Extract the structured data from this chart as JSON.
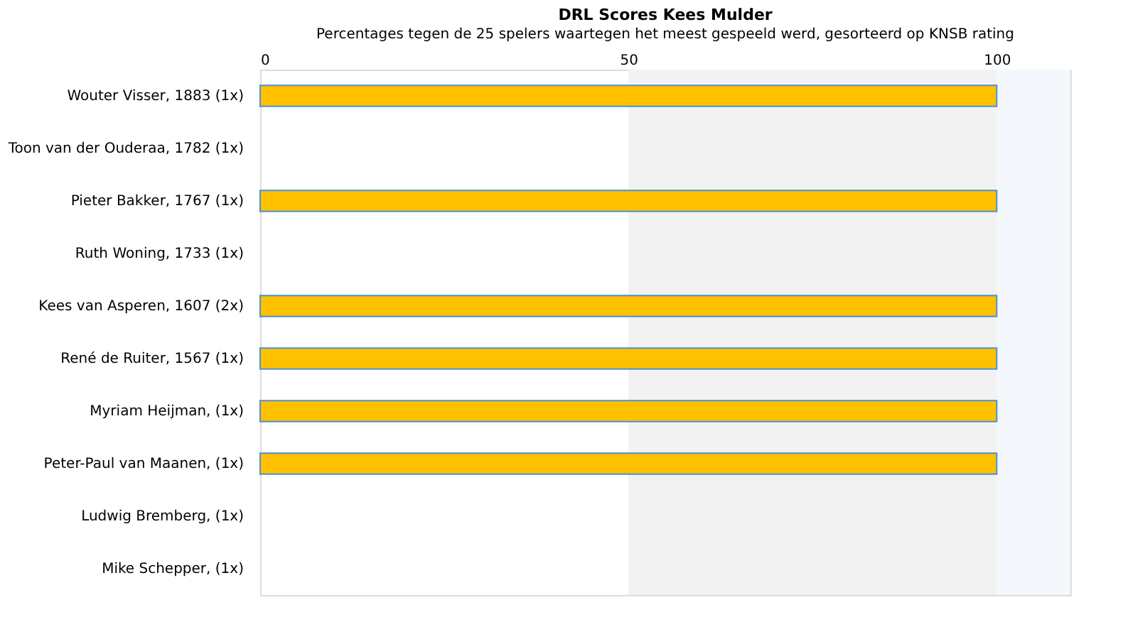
{
  "chart_data": {
    "type": "bar",
    "orientation": "horizontal",
    "title": "DRL Scores Kees Mulder",
    "subtitle": "Percentages tegen de 25 spelers waartegen het meest gespeeld werd, gesorteerd op KNSB rating",
    "categories": [
      "Wouter Visser, 1883 (1x)",
      "Toon van der Ouderaa, 1782 (1x)",
      "Pieter Bakker, 1767 (1x)",
      "Ruth Woning, 1733 (1x)",
      "Kees van Asperen, 1607 (2x)",
      "René de Ruiter, 1567 (1x)",
      "Myriam Heijman,  (1x)",
      "Peter-Paul van Maanen,  (1x)",
      "Ludwig Bremberg,  (1x)",
      "Mike Schepper,  (1x)"
    ],
    "values": [
      100,
      0,
      100,
      0,
      100,
      100,
      100,
      100,
      0,
      0
    ],
    "color": "#ffc000",
    "xlim": [
      0,
      110
    ],
    "xticks": [
      0,
      50,
      100
    ],
    "bands": [
      {
        "axis": "x",
        "from": 50,
        "to": 100,
        "color": "#f2f2f2"
      },
      {
        "axis": "x",
        "from": 100,
        "to": 110,
        "color": "#f4f8fc"
      }
    ],
    "grid": false,
    "legend": false
  }
}
